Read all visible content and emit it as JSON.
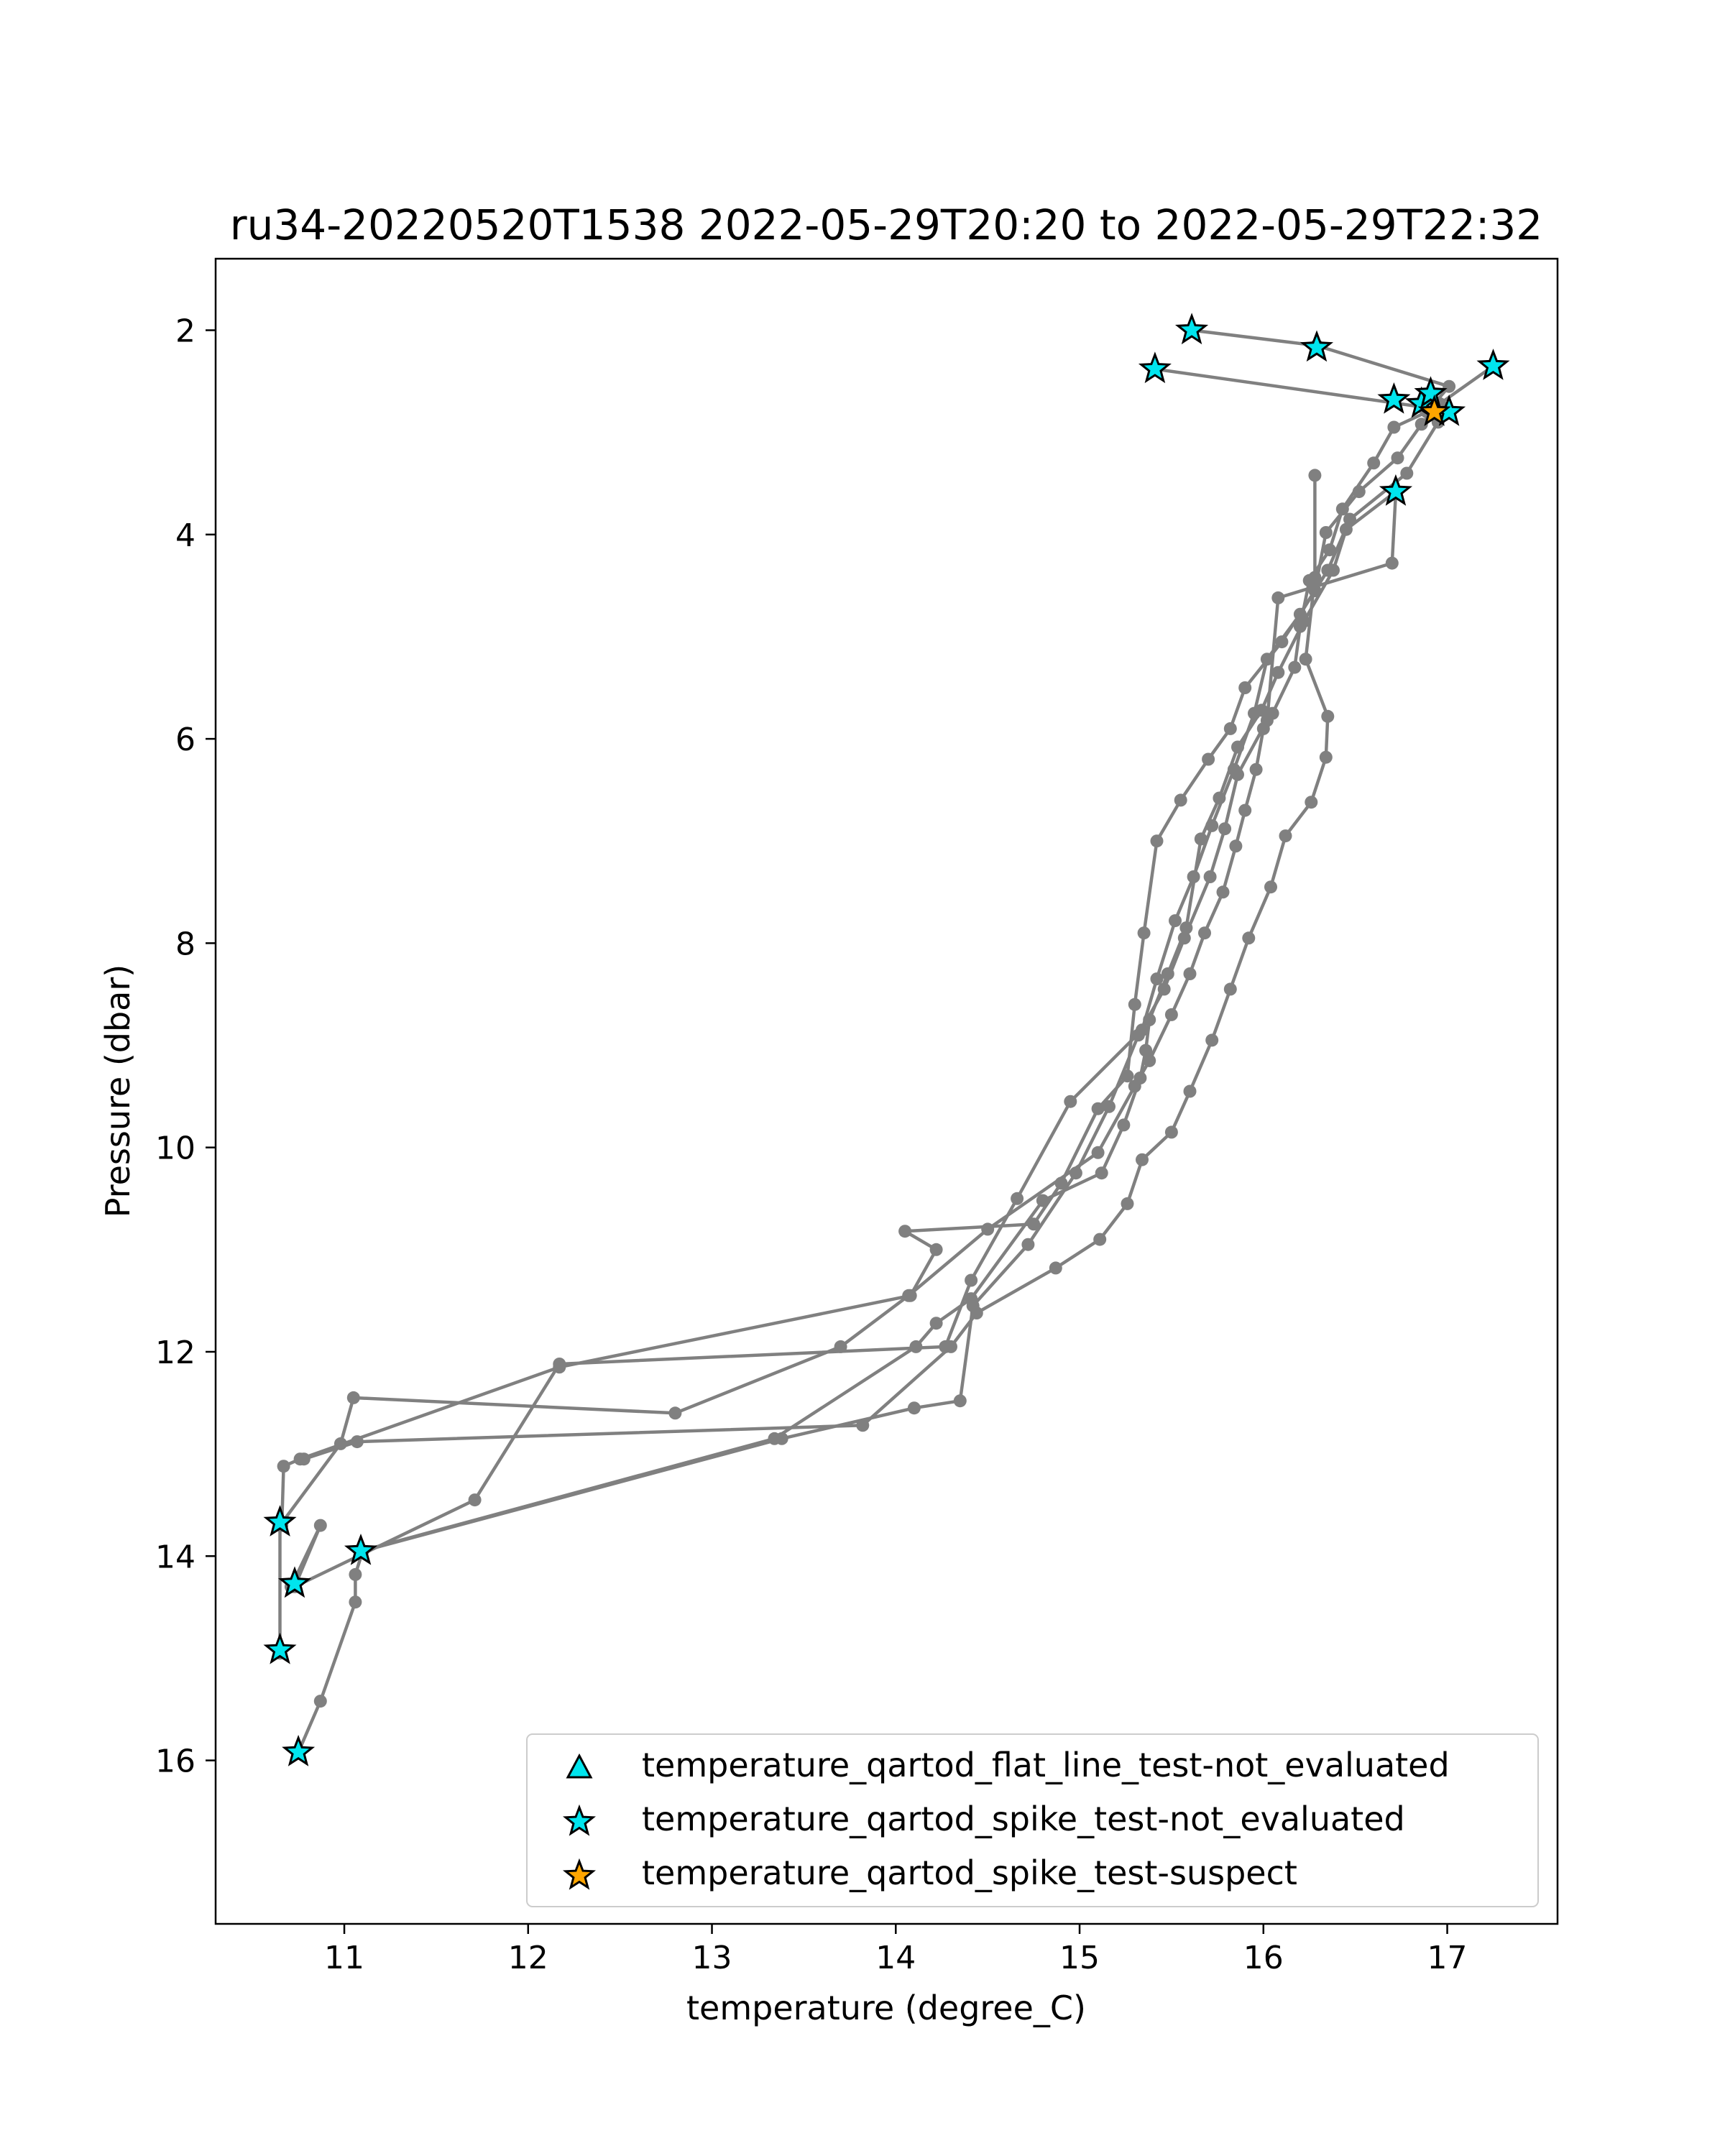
{
  "chart_data": {
    "type": "scatter",
    "title": "ru34-20220520T1538 2022-05-29T20:20 to 2022-05-29T22:32",
    "xlabel": "temperature (degree_C)",
    "ylabel": "Pressure (dbar)",
    "xlim": [
      10.3,
      17.6
    ],
    "ylim": [
      17.6,
      1.3
    ],
    "y_inverted": true,
    "xticks": [
      11,
      12,
      13,
      14,
      15,
      16,
      17
    ],
    "yticks": [
      2,
      4,
      6,
      8,
      10,
      12,
      14,
      16
    ],
    "grid": false,
    "legend_position": "lower-right",
    "profile_line_color": "#808080",
    "profiles": [
      {
        "x": [
          15.61,
          16.29,
          17.01,
          16.89,
          16.71,
          16.6,
          16.43,
          16.36,
          16.25,
          16.2,
          16.17,
          16.05,
          16.0,
          15.96,
          15.9,
          15.85,
          15.78,
          15.68,
          15.6,
          15.5,
          15.38,
          15.3,
          15.1,
          14.5,
          14.07,
          13.7,
          12.8,
          11.05,
          10.98,
          10.65,
          10.65
        ],
        "y": [
          2.0,
          2.15,
          2.55,
          2.8,
          2.95,
          3.3,
          3.75,
          4.15,
          4.45,
          4.9,
          5.3,
          5.75,
          5.9,
          6.3,
          6.7,
          7.05,
          7.5,
          7.9,
          8.3,
          8.7,
          9.15,
          9.4,
          10.05,
          10.8,
          11.45,
          11.95,
          12.6,
          12.45,
          12.9,
          13.7,
          14.95
        ]
      },
      {
        "x": [
          17.25,
          16.96,
          16.86,
          16.73,
          16.52,
          16.34,
          16.28,
          16.1,
          15.9,
          15.82,
          15.7,
          15.55,
          15.42,
          15.35,
          15.3,
          15.26,
          15.1,
          14.9,
          14.75,
          14.05,
          14.22,
          14.08,
          12.17,
          10.76,
          10.67,
          10.66
        ],
        "y": [
          2.35,
          2.72,
          2.92,
          3.25,
          3.58,
          3.98,
          4.55,
          5.05,
          5.5,
          5.9,
          6.2,
          6.6,
          7.0,
          7.9,
          8.6,
          9.3,
          9.62,
          10.35,
          10.75,
          10.82,
          11.0,
          11.45,
          12.15,
          13.05,
          13.12,
          13.7
        ]
      },
      {
        "x": [
          15.41,
          16.86,
          16.95,
          16.78,
          16.47,
          16.35,
          16.2,
          16.02,
          15.95,
          15.84,
          15.72,
          15.62,
          15.52,
          15.42,
          15.34,
          14.95,
          14.66,
          14.41,
          14.27,
          12.17,
          11.71,
          10.73,
          10.87,
          10.71
        ],
        "y": [
          2.38,
          2.75,
          2.9,
          3.4,
          3.85,
          4.35,
          4.78,
          5.22,
          5.75,
          6.3,
          6.85,
          7.35,
          7.78,
          8.35,
          8.85,
          9.55,
          10.5,
          11.3,
          11.95,
          12.12,
          13.45,
          14.3,
          13.7,
          14.3
        ]
      },
      {
        "x": [
          16.72,
          16.45,
          16.38,
          16.22,
          16.08,
          15.99,
          15.86,
          15.76,
          15.66,
          15.58,
          15.48,
          15.38,
          15.36,
          15.33,
          15.24,
          15.12,
          14.8,
          14.41,
          14.22,
          14.11,
          13.34,
          11.09
        ],
        "y": [
          3.58,
          3.95,
          4.35,
          4.85,
          5.35,
          5.72,
          6.08,
          6.58,
          6.98,
          7.85,
          8.3,
          8.75,
          9.05,
          9.32,
          9.78,
          10.25,
          10.52,
          11.48,
          11.72,
          11.95,
          12.85,
          13.95
        ]
      },
      {
        "x": [
          16.72,
          16.7,
          16.08,
          16.02,
          15.86,
          15.79,
          15.71,
          15.57,
          15.46,
          15.32,
          15.16,
          14.98,
          14.72,
          14.42,
          14.35,
          14.1,
          13.38,
          11.1,
          11.06,
          11.06,
          10.87,
          10.75
        ],
        "y": [
          3.6,
          4.28,
          4.62,
          5.82,
          6.35,
          6.88,
          7.35,
          7.95,
          8.45,
          8.9,
          9.6,
          10.25,
          10.95,
          11.55,
          12.48,
          12.55,
          12.85,
          13.95,
          14.18,
          14.45,
          15.42,
          15.92
        ]
      },
      {
        "x": [
          16.28,
          16.28,
          16.23,
          16.35,
          16.34,
          16.26,
          16.12,
          16.04,
          15.92,
          15.82,
          15.72,
          15.6,
          15.5,
          15.34,
          15.26,
          15.11,
          14.87,
          14.44,
          14.3,
          13.82,
          11.07,
          10.78
        ],
        "y": [
          3.42,
          4.42,
          5.22,
          5.78,
          6.18,
          6.62,
          6.95,
          7.45,
          7.95,
          8.45,
          8.95,
          9.45,
          9.85,
          10.12,
          10.55,
          10.9,
          11.18,
          11.62,
          11.95,
          12.72,
          12.88,
          13.05
        ]
      }
    ],
    "legend": [
      {
        "label": "temperature_qartod_flat_line_test-not_evaluated",
        "marker": "triangle",
        "color": "#00e5ee"
      },
      {
        "label": "temperature_qartod_spike_test-not_evaluated",
        "marker": "star",
        "color": "#00e5ee"
      },
      {
        "label": "temperature_qartod_spike_test-suspect",
        "marker": "star",
        "color": "#ffa500"
      }
    ],
    "series": [
      {
        "name": "temperature_qartod_spike_test-not_evaluated",
        "marker": "star",
        "color": "#00e5ee",
        "x": [
          15.61,
          16.29,
          15.41,
          17.25,
          16.71,
          16.86,
          16.91,
          17.01,
          16.72,
          10.65,
          11.09,
          10.73,
          10.65,
          10.75
        ],
        "y": [
          2.0,
          2.17,
          2.38,
          2.35,
          2.68,
          2.72,
          2.62,
          2.8,
          3.58,
          13.67,
          13.95,
          14.27,
          14.92,
          15.92
        ]
      },
      {
        "name": "temperature_qartod_spike_test-suspect",
        "marker": "star",
        "color": "#ffa500",
        "x": [
          16.93
        ],
        "y": [
          2.8
        ]
      }
    ]
  }
}
